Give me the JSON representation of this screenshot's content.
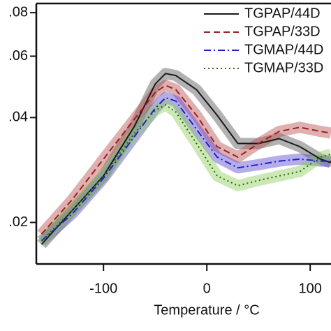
{
  "chart_data": {
    "type": "line",
    "xlabel": "Temperature / °C",
    "x": [
      -160,
      -130,
      -100,
      -70,
      -50,
      -40,
      -30,
      -10,
      10,
      30,
      50,
      70,
      90,
      110,
      120
    ],
    "series": [
      {
        "name": "TGPAP/44D",
        "color": "#1a1a1a",
        "band_color": "#555555",
        "dash": "solid",
        "values": [
          0.0173,
          0.0217,
          0.0272,
          0.0378,
          0.0499,
          0.0535,
          0.0528,
          0.0481,
          0.0406,
          0.0337,
          0.0337,
          0.0348,
          0.033,
          0.0304,
          0.0297
        ]
      },
      {
        "name": "TGPAP/33D",
        "color": "#a01e1e",
        "band_color": "#b85050",
        "dash": "dashed",
        "values": [
          0.0185,
          0.0233,
          0.0304,
          0.0396,
          0.0472,
          0.0495,
          0.0481,
          0.0406,
          0.033,
          0.0308,
          0.0337,
          0.0365,
          0.0375,
          0.0365,
          0.0361
        ]
      },
      {
        "name": "TGMAP/44D",
        "color": "#2020c8",
        "band_color": "#5a4ad0",
        "dash": "dashdot",
        "values": [
          0.0177,
          0.0212,
          0.0268,
          0.0353,
          0.0425,
          0.0456,
          0.0446,
          0.037,
          0.0308,
          0.0287,
          0.0293,
          0.03,
          0.0304,
          0.03,
          0.03
        ]
      },
      {
        "name": "TGMAP/33D",
        "color": "#2f6a12",
        "band_color": "#8ccc5a",
        "dash": "dotted",
        "values": [
          0.0177,
          0.0217,
          0.0272,
          0.0361,
          0.0419,
          0.0435,
          0.0415,
          0.0337,
          0.0272,
          0.0255,
          0.0264,
          0.0272,
          0.028,
          0.0308,
          0.0314
        ]
      }
    ],
    "xlim": [
      -165,
      120
    ],
    "xticks": [
      -100,
      0,
      100
    ],
    "ylim": [
      0.0152,
      0.085
    ],
    "ylog": true,
    "yticks": [
      {
        "value": 0.02,
        "label": ".02"
      },
      {
        "value": 0.04,
        "label": ".04"
      },
      {
        "value": 0.06,
        "label": ".06"
      },
      {
        "value": 0.08,
        "label": ".08"
      }
    ],
    "legend": "upper right"
  }
}
